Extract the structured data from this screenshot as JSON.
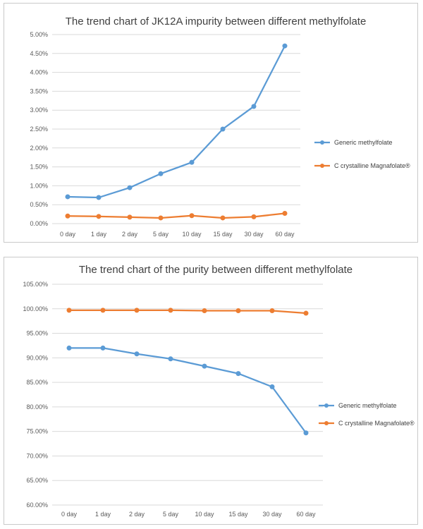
{
  "colors": {
    "series1": "#5B9BD5",
    "series2": "#ED7D31",
    "grid": "#d9d9d9",
    "text": "#595959"
  },
  "chart_data": [
    {
      "type": "line",
      "title": "The trend chart of JK12A impurity between different methylfolate",
      "categories": [
        "0 day",
        "1 day",
        "2 day",
        "5 day",
        "10 day",
        "15 day",
        "30 day",
        "60 day"
      ],
      "series": [
        {
          "name": "Generic methylfolate",
          "values": [
            0.71,
            0.69,
            0.95,
            1.32,
            1.62,
            2.5,
            3.1,
            4.7
          ]
        },
        {
          "name": "C crystalline Magnafolate®",
          "values": [
            0.2,
            0.19,
            0.17,
            0.15,
            0.21,
            0.15,
            0.18,
            0.27
          ]
        }
      ],
      "yticks": [
        "0.00%",
        "0.50%",
        "1.00%",
        "1.50%",
        "2.00%",
        "2.50%",
        "3.00%",
        "3.50%",
        "4.00%",
        "4.50%",
        "5.00%"
      ],
      "ylim": [
        0,
        5
      ],
      "grid": true,
      "legend_position": "right"
    },
    {
      "type": "line",
      "title": "The trend chart of the purity between different methylfolate",
      "categories": [
        "0 day",
        "1 day",
        "2 day",
        "5 day",
        "10 day",
        "15 day",
        "30 day",
        "60 day"
      ],
      "series": [
        {
          "name": "Generic methylfolate",
          "values": [
            92.0,
            92.0,
            90.8,
            89.8,
            88.3,
            86.8,
            84.1,
            74.7
          ]
        },
        {
          "name": "C crystalline Magnafolate®",
          "values": [
            99.7,
            99.7,
            99.7,
            99.7,
            99.6,
            99.6,
            99.6,
            99.1
          ]
        }
      ],
      "yticks": [
        "60.00%",
        "65.00%",
        "70.00%",
        "75.00%",
        "80.00%",
        "85.00%",
        "90.00%",
        "95.00%",
        "100.00%",
        "105.00%"
      ],
      "ylim": [
        60,
        105
      ],
      "grid": true,
      "legend_position": "right"
    }
  ]
}
